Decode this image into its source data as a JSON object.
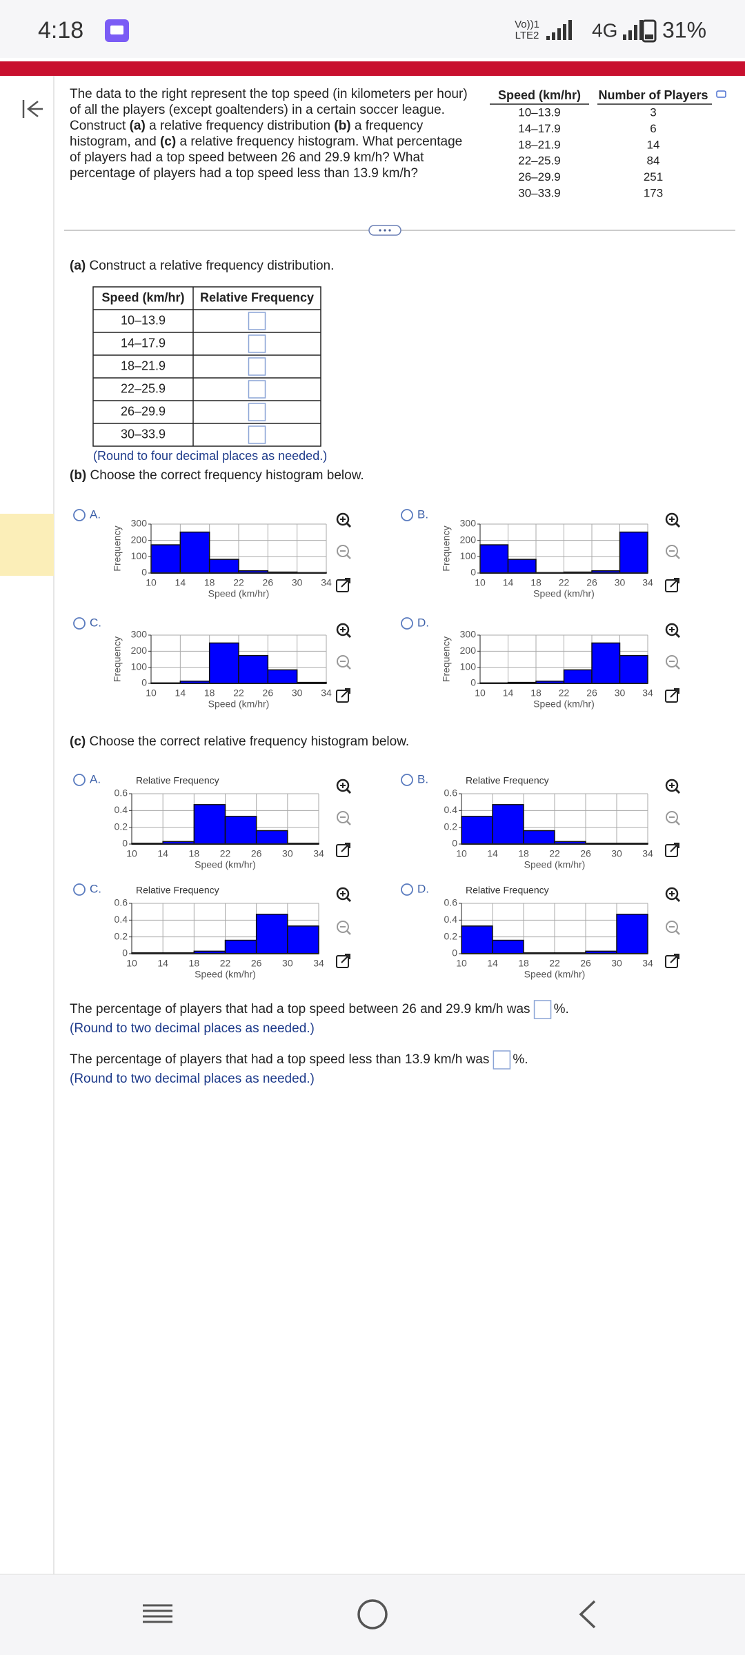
{
  "status_bar": {
    "time": "4:18",
    "carrier_top": "Vo))1",
    "carrier_bottom": "LTE2",
    "network": "4G",
    "battery": "31%"
  },
  "question": [
    "The data to the right represent the top speed (in kilometers per hour) of all the players (except goaltenders) in a certain soccer league. Construct ",
    "(a)",
    " a relative frequency distribution ",
    "(b)",
    " a frequency histogram, and ",
    "(c)",
    " a relative frequency histogram. What percentage of players had a top speed between 26 and 29.9 km/h? What percentage of players had a top speed less than 13.9 km/h?"
  ],
  "data_table": {
    "headers": [
      "Speed (km/hr)",
      "Number of Players"
    ],
    "rows": [
      [
        "10–13.9",
        3
      ],
      [
        "14–17.9",
        6
      ],
      [
        "18–21.9",
        14
      ],
      [
        "22–25.9",
        84
      ],
      [
        "26–29.9",
        251
      ],
      [
        "30–33.9",
        173
      ]
    ]
  },
  "part_a": {
    "prompt": [
      "(a)",
      " Construct a relative frequency distribution."
    ],
    "headers": [
      "Speed (km/hr)",
      "Relative Frequency"
    ],
    "rows": [
      "10–13.9",
      "14–17.9",
      "18–21.9",
      "22–25.9",
      "26–29.9",
      "30–33.9"
    ],
    "note": "(Round to four decimal places as needed.)"
  },
  "part_b": {
    "prompt": [
      "(b)",
      " Choose the correct frequency histogram below."
    ],
    "options": [
      "A.",
      "B.",
      "C.",
      "D."
    ]
  },
  "part_c": {
    "prompt": [
      "(c)",
      " Choose the correct relative frequency histogram below."
    ],
    "options": [
      "A.",
      "B.",
      "C.",
      "D."
    ]
  },
  "answers": [
    {
      "before": "The percentage of players that had a top speed between 26 and 29.9 km/h was",
      "after": "%.",
      "note": "(Round to two decimal places as needed.)"
    },
    {
      "before": "The percentage of players that had a top speed less than 13.9 km/h was",
      "after": "%.",
      "note": "(Round to two decimal places as needed.)"
    }
  ],
  "chart_data": [
    {
      "type": "histogram",
      "ylabel": "Frequency",
      "xlabel": "Speed (km/hr)",
      "color": "#0000ff",
      "bins": [
        10,
        14,
        18,
        22,
        26,
        30,
        34
      ],
      "values": [
        173,
        251,
        84,
        14,
        6,
        3
      ],
      "xlim": [
        10,
        34
      ],
      "ylim": [
        0,
        300
      ],
      "xticks": [
        10,
        14,
        18,
        22,
        26,
        30,
        34
      ],
      "yticks": [
        0,
        100,
        200,
        300
      ]
    },
    {
      "type": "histogram",
      "ylabel": "Frequency",
      "xlabel": "Speed (km/hr)",
      "color": "#0000ff",
      "bins": [
        10,
        14,
        18,
        22,
        26,
        30,
        34
      ],
      "values": [
        173,
        84,
        3,
        6,
        14,
        251
      ],
      "xlim": [
        10,
        34
      ],
      "ylim": [
        0,
        300
      ],
      "xticks": [
        10,
        14,
        18,
        22,
        26,
        30,
        34
      ],
      "yticks": [
        0,
        100,
        200,
        300
      ]
    },
    {
      "type": "histogram",
      "ylabel": "Frequency",
      "xlabel": "Speed (km/hr)",
      "color": "#0000ff",
      "bins": [
        10,
        14,
        18,
        22,
        26,
        30,
        34
      ],
      "values": [
        3,
        14,
        251,
        173,
        84,
        6
      ],
      "xlim": [
        10,
        34
      ],
      "ylim": [
        0,
        300
      ],
      "xticks": [
        10,
        14,
        18,
        22,
        26,
        30,
        34
      ],
      "yticks": [
        0,
        100,
        200,
        300
      ]
    },
    {
      "type": "histogram",
      "ylabel": "Frequency",
      "xlabel": "Speed (km/hr)",
      "color": "#0000ff",
      "bins": [
        10,
        14,
        18,
        22,
        26,
        30,
        34
      ],
      "values": [
        3,
        6,
        14,
        84,
        251,
        173
      ],
      "xlim": [
        10,
        34
      ],
      "ylim": [
        0,
        300
      ],
      "xticks": [
        10,
        14,
        18,
        22,
        26,
        30,
        34
      ],
      "yticks": [
        0,
        100,
        200,
        300
      ]
    },
    {
      "type": "histogram",
      "title": "Relative Frequency",
      "xlabel": "Speed (km/hr)",
      "color": "#0000ff",
      "bins": [
        10,
        14,
        18,
        22,
        26,
        30,
        34
      ],
      "values": [
        0.01,
        0.03,
        0.47,
        0.33,
        0.16,
        0.01
      ],
      "xlim": [
        10,
        34
      ],
      "ylim": [
        0,
        0.6
      ],
      "xticks": [
        10,
        14,
        18,
        22,
        26,
        30,
        34
      ],
      "yticks": [
        0,
        0.2,
        0.4,
        0.6
      ]
    },
    {
      "type": "histogram",
      "title": "Relative Frequency",
      "xlabel": "Speed (km/hr)",
      "color": "#0000ff",
      "bins": [
        10,
        14,
        18,
        22,
        26,
        30,
        34
      ],
      "values": [
        0.33,
        0.47,
        0.16,
        0.03,
        0.01,
        0.01
      ],
      "xlim": [
        10,
        34
      ],
      "ylim": [
        0,
        0.6
      ],
      "xticks": [
        10,
        14,
        18,
        22,
        26,
        30,
        34
      ],
      "yticks": [
        0,
        0.2,
        0.4,
        0.6
      ]
    },
    {
      "type": "histogram",
      "title": "Relative Frequency",
      "xlabel": "Speed (km/hr)",
      "color": "#0000ff",
      "bins": [
        10,
        14,
        18,
        22,
        26,
        30,
        34
      ],
      "values": [
        0.01,
        0.01,
        0.03,
        0.16,
        0.47,
        0.33
      ],
      "xlim": [
        10,
        34
      ],
      "ylim": [
        0,
        0.6
      ],
      "xticks": [
        10,
        14,
        18,
        22,
        26,
        30,
        34
      ],
      "yticks": [
        0,
        0.2,
        0.4,
        0.6
      ]
    },
    {
      "type": "histogram",
      "title": "Relative Frequency",
      "xlabel": "Speed (km/hr)",
      "color": "#0000ff",
      "bins": [
        10,
        14,
        18,
        22,
        26,
        30,
        34
      ],
      "values": [
        0.33,
        0.16,
        0.01,
        0.01,
        0.03,
        0.47
      ],
      "xlim": [
        10,
        34
      ],
      "ylim": [
        0,
        0.6
      ],
      "xticks": [
        10,
        14,
        18,
        22,
        26,
        30,
        34
      ],
      "yticks": [
        0,
        0.2,
        0.4,
        0.6
      ]
    }
  ]
}
